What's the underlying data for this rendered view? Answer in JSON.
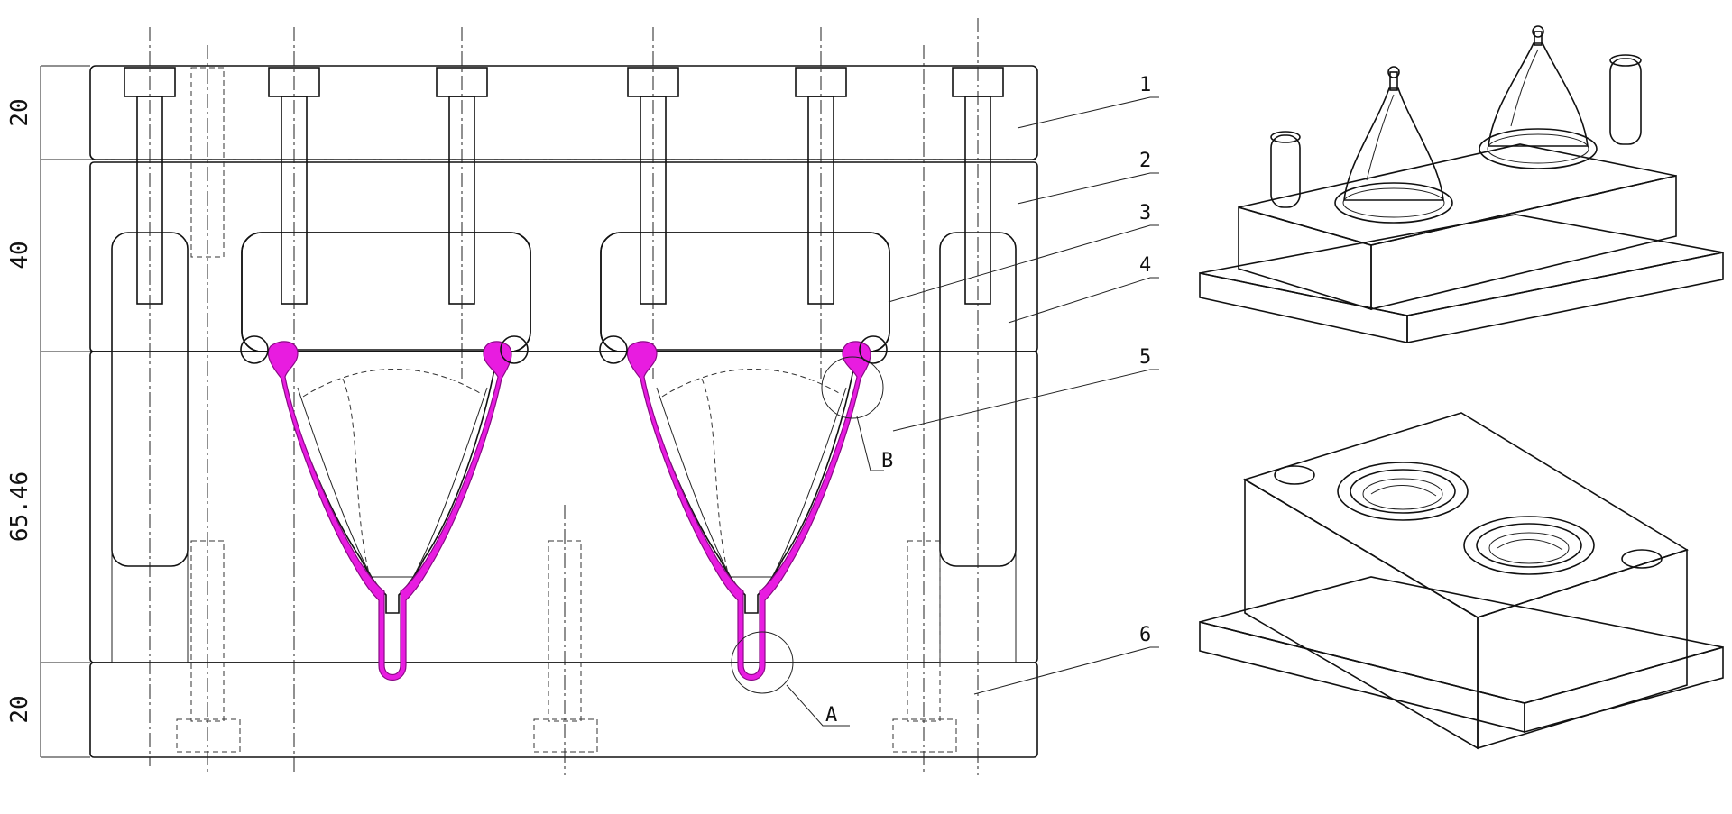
{
  "drawing": {
    "dimensions": [
      {
        "id": "dim-plate-1",
        "value": "20"
      },
      {
        "id": "dim-plate-2",
        "value": "40"
      },
      {
        "id": "dim-plate-3",
        "value": "65.46"
      },
      {
        "id": "dim-plate-4",
        "value": "20"
      }
    ],
    "part_labels": [
      "1",
      "2",
      "3",
      "4",
      "5",
      "6"
    ],
    "detail_labels": {
      "a": "A",
      "b": "B"
    }
  },
  "colors": {
    "line": "#111111",
    "molded_part": "#e81ce0",
    "background": "#ffffff"
  }
}
